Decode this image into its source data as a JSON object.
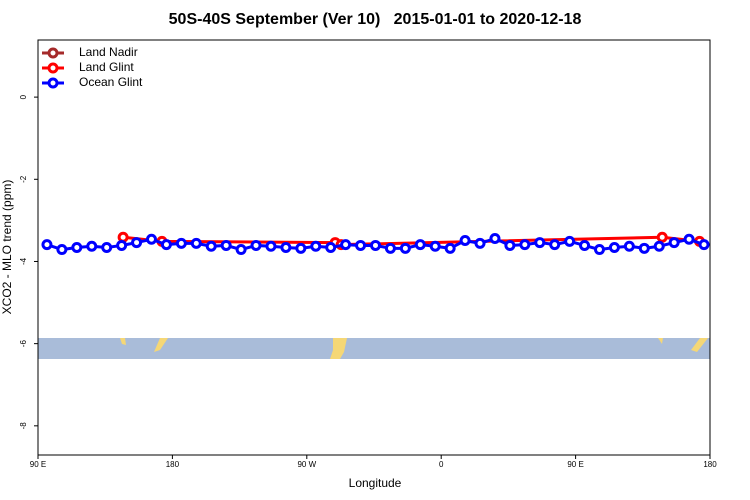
{
  "chart_data": {
    "type": "line",
    "title": "50S-40S September (Ver 10)   2015-01-01 to 2020-12-18",
    "x_label": "Longitude",
    "y_label": "XCO2 - MLO trend (ppm)",
    "xlim": [
      90,
      540
    ],
    "ylim": [
      -8.71,
      1.39
    ],
    "xticks": [
      {
        "value": 90,
        "label": "90 E"
      },
      180,
      {
        "value": 270,
        "label": "90 W"
      },
      {
        "value": 360,
        "label": "0"
      },
      {
        "value": 450,
        "label": "90 E"
      },
      {
        "value": 540,
        "label": "180"
      }
    ],
    "yticks": [
      0,
      -2,
      -4,
      -6,
      -8
    ],
    "legend": "top-left",
    "series": [
      {
        "name": "Land Nadir",
        "color": "#a52a2a",
        "x": [],
        "values": []
      },
      {
        "name": "Land Glint",
        "color": "#ff0000",
        "x": [
          147,
          173,
          289,
          293,
          508,
          533
        ],
        "values": [
          -3.41,
          -3.51,
          -3.54,
          -3.59,
          -3.41,
          -3.51
        ]
      },
      {
        "name": "Ocean Glint",
        "color": "#0000ff",
        "x": [
          96,
          106,
          116,
          126,
          136,
          146,
          156,
          166,
          176,
          186,
          196,
          206,
          216,
          226,
          236,
          246,
          256,
          266,
          276,
          286,
          296,
          306,
          316,
          326,
          336,
          346,
          356,
          366,
          376,
          386,
          396,
          406,
          416,
          426,
          436,
          446,
          456,
          466,
          476,
          486,
          496,
          506,
          516,
          526,
          536
        ],
        "values": [
          -3.59,
          -3.71,
          -3.66,
          -3.63,
          -3.66,
          -3.61,
          -3.54,
          -3.46,
          -3.59,
          -3.56,
          -3.56,
          -3.63,
          -3.61,
          -3.71,
          -3.61,
          -3.63,
          -3.66,
          -3.68,
          -3.63,
          -3.66,
          -3.59,
          -3.61,
          -3.61,
          -3.68,
          -3.68,
          -3.59,
          -3.63,
          -3.68,
          -3.49,
          -3.56,
          -3.44,
          -3.61,
          -3.59,
          -3.54,
          -3.59,
          -3.51,
          -3.61,
          -3.71,
          -3.66,
          -3.63,
          -3.68,
          -3.63,
          -3.54,
          -3.46,
          -3.59
        ]
      }
    ]
  }
}
